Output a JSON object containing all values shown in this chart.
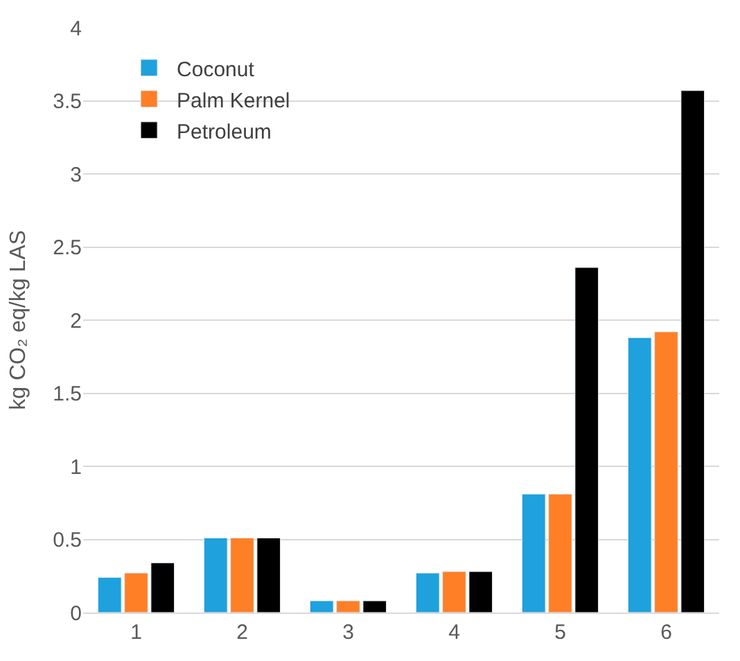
{
  "chart_data": {
    "type": "bar",
    "categories": [
      "1",
      "2",
      "3",
      "4",
      "5",
      "6"
    ],
    "ylabel": "kg CO₂ eq/kg LAS",
    "ylim": [
      0,
      4
    ],
    "yticks": [
      0,
      0.5,
      1,
      1.5,
      2,
      2.5,
      3,
      3.5,
      4
    ],
    "grid": "y",
    "legend": "top left",
    "series": [
      {
        "name": "Coconut",
        "color": "#1ea1dc",
        "values": [
          0.24,
          0.51,
          0.08,
          0.27,
          0.81,
          1.88
        ]
      },
      {
        "name": "Palm Kernel",
        "color": "#ff7f27",
        "values": [
          0.27,
          0.51,
          0.08,
          0.28,
          0.81,
          1.92
        ]
      },
      {
        "name": "Petroleum",
        "color": "#000000",
        "values": [
          0.34,
          0.51,
          0.08,
          0.28,
          2.36,
          3.57
        ]
      }
    ]
  }
}
